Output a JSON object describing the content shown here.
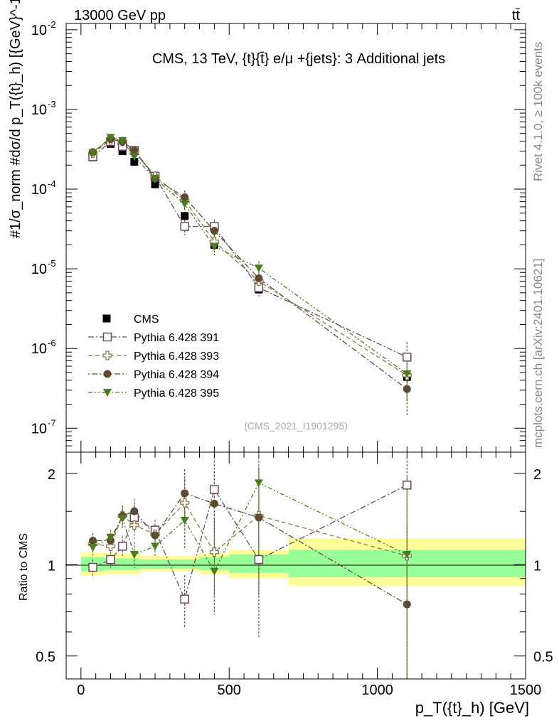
{
  "header": {
    "left": "13000 GeV pp",
    "right": "tt̄"
  },
  "side_labels": {
    "rivet": "Rivet 4.1.0, ≥ 100k events",
    "mcplots": "mcplots.cern.ch [arXiv:2401.10621]"
  },
  "chart_data": [
    {
      "type": "scatter",
      "role": "main",
      "title": "CMS, 13 TeV, {t}{t̄} e/μ +{jets}: 3 Additional jets",
      "watermark": "(CMS_2021_I1901295)",
      "ylabel": "#1/σ_norm #dσ/d p_T({t}_h) [{GeV}^-1]",
      "yscale": "log",
      "ylim": [
        5e-08,
        0.012
      ],
      "yticks": [
        {
          "value": 1e-07,
          "mant": "10",
          "exp": "-7"
        },
        {
          "value": 1e-06,
          "mant": "10",
          "exp": "-6"
        },
        {
          "value": 1e-05,
          "mant": "10",
          "exp": "-5"
        },
        {
          "value": 0.0001,
          "mant": "10",
          "exp": "-4"
        },
        {
          "value": 0.001,
          "mant": "10",
          "exp": "-3"
        },
        {
          "value": 0.01,
          "mant": "10",
          "exp": "-2"
        }
      ],
      "xlim": [
        -50,
        1500
      ],
      "x": [
        40,
        100,
        140,
        180,
        250,
        350,
        450,
        600,
        1100
      ],
      "series": [
        {
          "name": "CMS",
          "color": "#000000",
          "marker": "square-filled",
          "line": "none",
          "values": [
            0.00025,
            0.00037,
            0.0003,
            0.00022,
            0.000115,
            4.6e-05,
            2e-05,
            5.5e-06,
            4.4e-07
          ]
        },
        {
          "name": "Pythia 6.428 391",
          "color": "#6b4a5e",
          "marker": "square-open",
          "line": "dash-dot",
          "values": [
            0.000255,
            0.000395,
            0.000345,
            0.000305,
            0.000145,
            3.4e-05,
            3.4e-05,
            5.8e-06,
            7.8e-07
          ]
        },
        {
          "name": "Pythia 6.428 393",
          "color": "#8a7a48",
          "marker": "cross-open",
          "line": "dash",
          "values": [
            0.000282,
            0.000415,
            0.000395,
            0.000295,
            0.000145,
            7.2e-05,
            2.2e-05,
            7e-06,
            4.6e-07
          ]
        },
        {
          "name": "Pythia 6.428 394",
          "color": "#5e4b32",
          "marker": "circle-filled",
          "line": "dot-dash",
          "values": [
            0.000292,
            0.000425,
            0.000395,
            0.000308,
            0.000135,
            7.9e-05,
            3e-05,
            7.6e-06,
            3.1e-07
          ]
        },
        {
          "name": "Pythia 6.428 395",
          "color": "#4a7d1e",
          "marker": "triangle-down",
          "line": "dash-dot-dot",
          "values": [
            0.000285,
            0.000445,
            0.000405,
            0.000255,
            0.000135,
            6.5e-05,
            1.9e-05,
            1.02e-05,
            4.8e-07
          ]
        }
      ]
    },
    {
      "type": "scatter",
      "role": "ratio",
      "ylabel": "Ratio to CMS",
      "xlabel": "p_T({t}_h) [GeV]",
      "yscale": "log",
      "ylim": [
        0.42,
        2.35
      ],
      "yticks": [
        0.5,
        1,
        2
      ],
      "xlim": [
        -50,
        1500
      ],
      "xticks": [
        0,
        500,
        1000,
        1500
      ],
      "x": [
        40,
        100,
        140,
        180,
        250,
        350,
        450,
        600,
        1100
      ],
      "bands": [
        {
          "x0": 0,
          "x1": 80,
          "yellow": [
            0.92,
            1.1
          ],
          "green": [
            0.95,
            1.06
          ]
        },
        {
          "x0": 80,
          "x1": 200,
          "yellow": [
            0.93,
            1.09
          ],
          "green": [
            0.96,
            1.05
          ]
        },
        {
          "x0": 200,
          "x1": 400,
          "yellow": [
            0.95,
            1.07
          ],
          "green": [
            0.97,
            1.04
          ]
        },
        {
          "x0": 400,
          "x1": 500,
          "yellow": [
            0.93,
            1.09
          ],
          "green": [
            0.96,
            1.06
          ]
        },
        {
          "x0": 500,
          "x1": 700,
          "yellow": [
            0.9,
            1.12
          ],
          "green": [
            0.94,
            1.08
          ]
        },
        {
          "x0": 700,
          "x1": 1500,
          "yellow": [
            0.85,
            1.22
          ],
          "green": [
            0.91,
            1.12
          ]
        }
      ],
      "series": [
        {
          "name": "Pythia 6.428 391",
          "values": [
            0.98,
            1.04,
            1.15,
            1.43,
            1.3,
            0.77,
            1.77,
            1.04,
            1.83
          ]
        },
        {
          "name": "Pythia 6.428 393",
          "values": [
            1.17,
            1.15,
            1.45,
            1.35,
            1.26,
            1.6,
            1.1,
            1.45,
            1.07
          ]
        },
        {
          "name": "Pythia 6.428 394",
          "values": [
            1.2,
            1.2,
            1.45,
            1.5,
            1.25,
            1.72,
            1.59,
            1.43,
            0.74
          ]
        },
        {
          "name": "Pythia 6.428 395",
          "values": [
            1.14,
            1.23,
            1.42,
            1.08,
            1.15,
            1.4,
            0.95,
            1.86,
            1.08
          ]
        }
      ]
    }
  ]
}
